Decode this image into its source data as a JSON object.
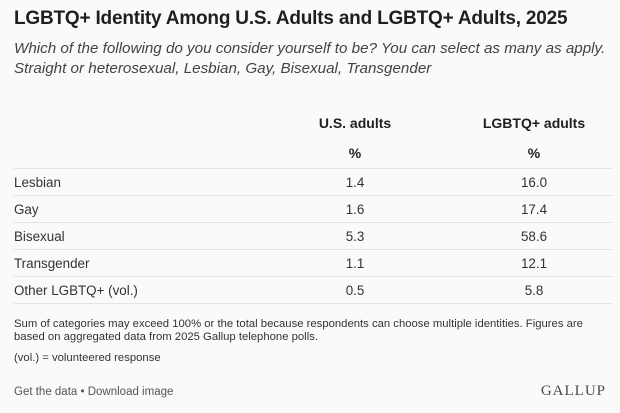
{
  "chart_data": {
    "type": "table",
    "title": "LGBTQ+ Identity Among U.S. Adults and LGBTQ+ Adults, 2025",
    "subtitle": "Which of the following do you consider yourself to be? You can select as many as apply. Straight or heterosexual, Lesbian, Gay, Bisexual, Transgender",
    "columns": [
      "U.S. adults",
      "LGBTQ+ adults"
    ],
    "unit_row": [
      "%",
      "%"
    ],
    "categories": [
      "Lesbian",
      "Gay",
      "Bisexual",
      "Transgender",
      "Other LGBTQ+ (vol.)"
    ],
    "series": [
      {
        "name": "U.S. adults",
        "values": [
          "1.4",
          "1.6",
          "5.3",
          "1.1",
          "0.5"
        ]
      },
      {
        "name": "LGBTQ+ adults",
        "values": [
          "16.0",
          "17.4",
          "58.6",
          "12.1",
          "5.8"
        ]
      }
    ]
  },
  "notes": {
    "note1": "Sum of categories may exceed 100% or the total because respondents can choose multiple identities. Figures are based on aggregated data from 2025 Gallup telephone polls.",
    "note2": "(vol.) = volunteered response"
  },
  "footer": {
    "get_data": "Get the data",
    "separator": " • ",
    "download": "Download image"
  },
  "logo": {
    "text": "GALLUP"
  },
  "colors": {
    "background": "#fafafa",
    "title": "#1f1f1f",
    "rule": "#e3e3e3"
  }
}
